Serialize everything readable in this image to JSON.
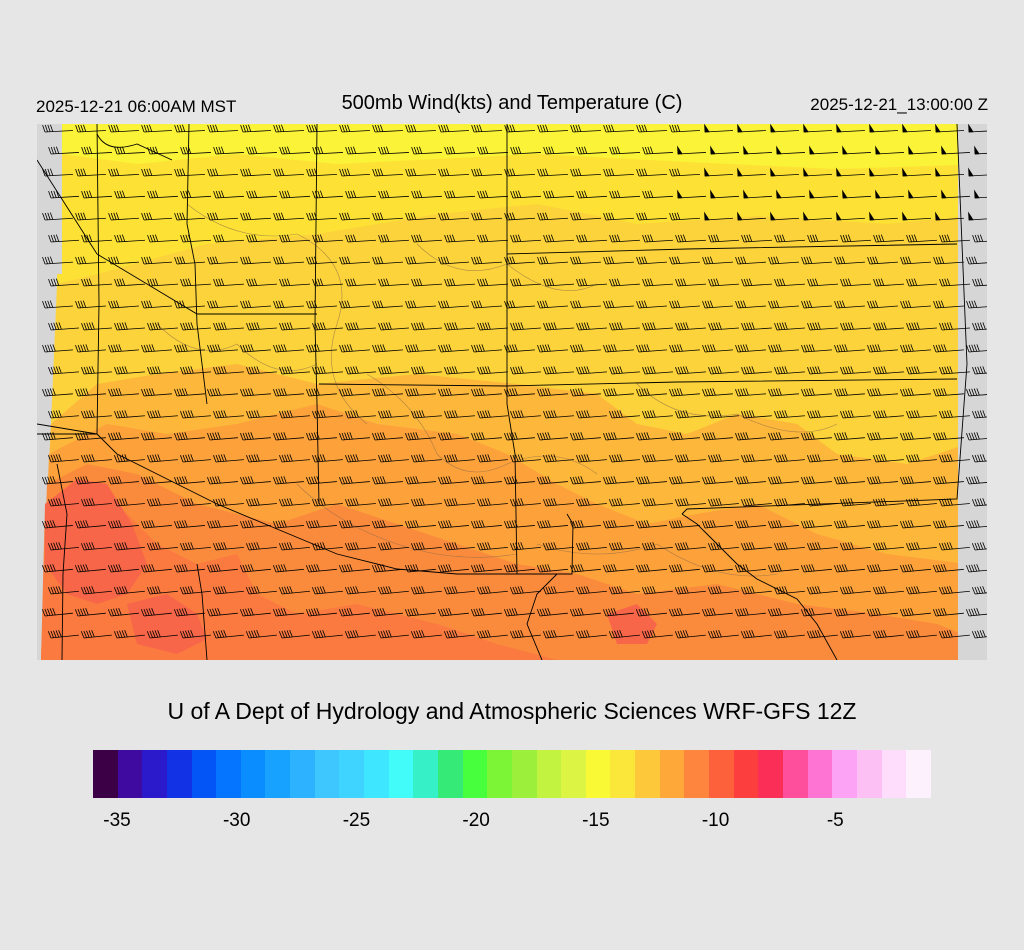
{
  "header": {
    "valid_time": "2025-12-21 06:00AM MST",
    "title": "500mb Wind(kts) and Temperature (C)",
    "init_time": "2025-12-21_13:00:00 Z"
  },
  "credit": "U of A Dept of Hydrology and Atmospheric Sciences WRF-GFS 12Z",
  "colorbar": {
    "units": "C",
    "min": -35,
    "max": 0,
    "colors": [
      "#3c0046",
      "#3f0aa0",
      "#2b1acc",
      "#1232e6",
      "#0455f5",
      "#0575ff",
      "#0a8eff",
      "#17a2ff",
      "#2cb2ff",
      "#3ec6ff",
      "#3ed4ff",
      "#3ee6ff",
      "#42fcf9",
      "#36f0c8",
      "#36ea78",
      "#47ff3c",
      "#7cf536",
      "#9cf03c",
      "#c2f341",
      "#dcf443",
      "#f9f935",
      "#fbe73a",
      "#fdc93b",
      "#fea83a",
      "#fd853d",
      "#fd613b",
      "#fd3e3e",
      "#fb2e57",
      "#fd4f9c",
      "#fd74d3",
      "#fda3f5",
      "#fdc0f5",
      "#fdddfb",
      "#fdf1fd"
    ],
    "tick_labels": [
      "-35",
      "-30",
      "-25",
      "-20",
      "-15",
      "-10",
      "-5"
    ],
    "tick_values": [
      -35,
      -30,
      -25,
      -20,
      -15,
      -10,
      -5
    ]
  },
  "map": {
    "field": "500mb temperature (C)",
    "palette_used": [
      "#fbf337",
      "#fde235",
      "#fdc93b",
      "#fbb83a",
      "#fda13a",
      "#fb8b3c",
      "#fa7a40",
      "#f76648",
      "#f5f5f5"
    ],
    "barb_color": "#000000",
    "boundary_color": "#000000",
    "terrain_contour_color": "#8a6a4a",
    "wind_direction": "W",
    "wind_speed_north_kts": 45,
    "wind_speed_south_kts": 60
  }
}
